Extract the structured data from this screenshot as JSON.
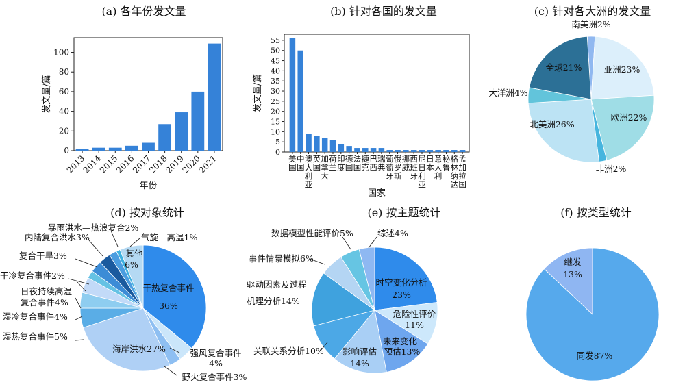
{
  "colors": {
    "bar": "#3582D8",
    "axis": "#222222",
    "continent_slices": [
      "#90B8F0",
      "#DCEFFB",
      "#9FDDE6",
      "#46B5DE",
      "#BCE3F4",
      "#62C4DB",
      "#2C7096"
    ],
    "object_slices": [
      "#2F8BEB",
      "#CBE6FA",
      "#8EBFF2",
      "#AFD0F5",
      "#5AADE6",
      "#8ECDF0",
      "#C2DAF8",
      "#65C2E4",
      "#3C8CD6",
      "#1A5A9E",
      "#4A9DE0",
      "#3FB1E0",
      "#B4D9F3"
    ],
    "topic_slices": [
      "#2F8BEB",
      "#CDE8FB",
      "#6EA6EE",
      "#A9CFF5",
      "#4CA8E6",
      "#3FA2DE",
      "#B4D5F3",
      "#66C5E3",
      "#8EB8F2"
    ],
    "type_slices": [
      "#56A9EC",
      "#8FB6F2"
    ]
  },
  "chart_data": [
    {
      "id": "a",
      "type": "bar",
      "title": "(a) 各年份发文量",
      "xlabel": "年份",
      "ylabel": "发文量/篇",
      "categories": [
        "2013",
        "2014",
        "2015",
        "2016",
        "2017",
        "2018",
        "2019",
        "2020",
        "2021"
      ],
      "values": [
        2,
        3,
        3,
        5,
        8,
        27,
        39,
        60,
        109
      ],
      "ylim": [
        0,
        115
      ],
      "yticks": [
        0,
        20,
        40,
        60,
        80,
        100
      ]
    },
    {
      "id": "b",
      "type": "bar",
      "title": "(b) 针对各国的发文量",
      "xlabel": "国家",
      "ylabel": "发文量/篇",
      "categories": [
        "美国",
        "中国",
        "澳大利亚",
        "英国",
        "加拿大",
        "荷兰",
        "印度",
        "德国",
        "法国",
        "捷克",
        "巴西",
        "瑞典",
        "葡萄牙",
        "俄罗斯",
        "挪威",
        "西班牙",
        "尼日利亚",
        "日本",
        "意大利",
        "秘鲁",
        "格林纳达",
        "孟加拉国"
      ],
      "tick_labels": [
        "美国",
        "中国",
        "澳大利亚",
        "英国",
        "加拿大",
        "荷兰",
        "印度",
        "德国",
        "法国",
        "捷克",
        "巴西",
        "瑞典",
        "葡萄牙",
        "俄罗斯",
        "挪威",
        "西班牙",
        "尼日利亚",
        "日本",
        "意大利",
        "秘鲁",
        "格林纳达",
        "孟加拉国"
      ],
      "values": [
        56,
        50,
        9,
        8,
        7,
        6,
        4,
        3,
        2,
        2,
        2,
        2,
        1,
        1,
        1,
        1,
        1,
        1,
        1,
        1,
        1,
        1
      ],
      "ylim": [
        0,
        58
      ],
      "yticks": [
        0,
        5,
        10,
        15,
        20,
        25,
        30,
        35,
        40,
        45,
        50,
        55
      ]
    },
    {
      "id": "c",
      "type": "pie",
      "title": "(c) 针对各大洲的发文量",
      "labels": [
        "南美洲",
        "亚洲",
        "欧洲",
        "非洲",
        "北美洲",
        "大洋洲",
        "全球"
      ],
      "values": [
        2,
        23,
        22,
        2,
        26,
        4,
        21
      ],
      "label_text": [
        "南美洲2%",
        "亚洲23%",
        "欧洲22%",
        "非洲2%",
        "北美洲26%",
        "大洋洲4%",
        "全球21%"
      ]
    },
    {
      "id": "d",
      "type": "pie",
      "title": "(d) 按对象统计",
      "labels": [
        "干热复合事件",
        "强风复合事件",
        "野火复合事件",
        "海岸洪水",
        "湿热复合事件",
        "湿冷复合事件",
        "日夜持续高温复合事件",
        "干冷复合事件",
        "复合干旱",
        "内陆复合洪水",
        "暴雨洪水—热浪复合",
        "气旋—高温",
        "其他"
      ],
      "values": [
        36,
        4,
        3,
        27,
        5,
        4,
        4,
        2,
        3,
        3,
        2,
        1,
        6
      ],
      "label_text": [
        "干热复合事件",
        "36%",
        "强风复合事件",
        "4%",
        "野火复合事件3%",
        "海岸洪水27%",
        "湿热复合事件5%",
        "湿冷复合事件4%",
        "日夜持续高温",
        "复合事件4%",
        "干冷复合事件2%",
        "复合干旱3%",
        "内陆复合洪水3%",
        "暴雨洪水—热浪复合2%",
        "气旋—高温1%",
        "其他",
        "6%"
      ]
    },
    {
      "id": "e",
      "type": "pie",
      "title": "(e) 按主题统计",
      "labels": [
        "时空变化分析",
        "危险性评价",
        "未来变化预估",
        "影响评估",
        "关联关系分析",
        "驱动因素及过程机理分析",
        "事件情景模拟",
        "数据模型性能评价",
        "综述"
      ],
      "values": [
        23,
        11,
        13,
        14,
        10,
        14,
        6,
        5,
        4
      ],
      "label_text": [
        "时空变化分析",
        "23%",
        "危险性评价",
        "11%",
        "未来变化",
        "预估13%",
        "影响评估",
        "14%",
        "关联关系分析10%",
        "驱动因素及过程",
        "机理分析14%",
        "事件情景模拟6%",
        "数据模型性能评价5%",
        "综述4%"
      ]
    },
    {
      "id": "f",
      "type": "pie",
      "title": "(f) 按类型统计",
      "labels": [
        "同发",
        "继发"
      ],
      "values": [
        87,
        13
      ],
      "label_text": [
        "同发87%",
        "继发",
        "13%"
      ]
    }
  ]
}
